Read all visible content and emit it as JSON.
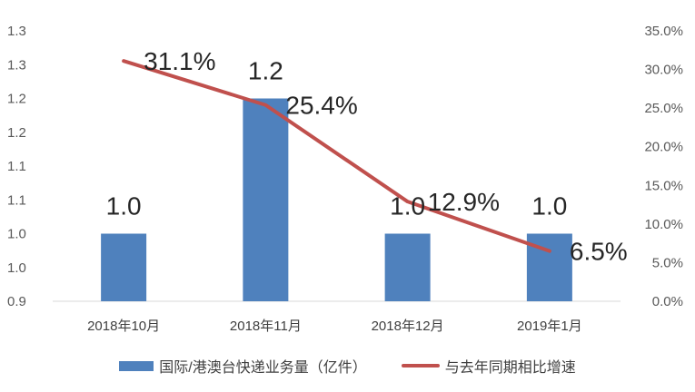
{
  "chart_data": {
    "type": "bar+line",
    "categories": [
      "2018年10月",
      "2018年11月",
      "2018年12月",
      "2019年1月"
    ],
    "series": [
      {
        "name": "国际/港澳台快递业务量（亿件）",
        "type": "bar",
        "axis": "left",
        "values": [
          1.0,
          1.2,
          1.0,
          1.0
        ],
        "labels": [
          "1.0",
          "1.2",
          "1.0",
          "1.0"
        ],
        "color": "#4f81bd"
      },
      {
        "name": "与去年同期相比增速",
        "type": "line",
        "axis": "right",
        "values": [
          31.1,
          25.4,
          12.9,
          6.5
        ],
        "labels": [
          "31.1%",
          "25.4%",
          "12.9%",
          "6.5%"
        ],
        "color": "#c0504d"
      }
    ],
    "y_left": {
      "ylim": [
        0.9,
        1.3
      ],
      "tick_values": [
        0.9,
        0.95,
        1.0,
        1.05,
        1.1,
        1.15,
        1.2,
        1.25,
        1.3
      ],
      "tick_labels": [
        "0.9",
        "1.0",
        "1.0",
        "1.1",
        "1.1",
        "1.2",
        "1.2",
        "1.3",
        "1.3"
      ]
    },
    "y_right": {
      "ylim": [
        0,
        35
      ],
      "tick_values": [
        0,
        5,
        10,
        15,
        20,
        25,
        30,
        35
      ],
      "tick_labels": [
        "0.0%",
        "5.0%",
        "10.0%",
        "15.0%",
        "20.0%",
        "25.0%",
        "30.0%",
        "35.0%"
      ]
    },
    "grid": false,
    "legend_position": "bottom"
  }
}
